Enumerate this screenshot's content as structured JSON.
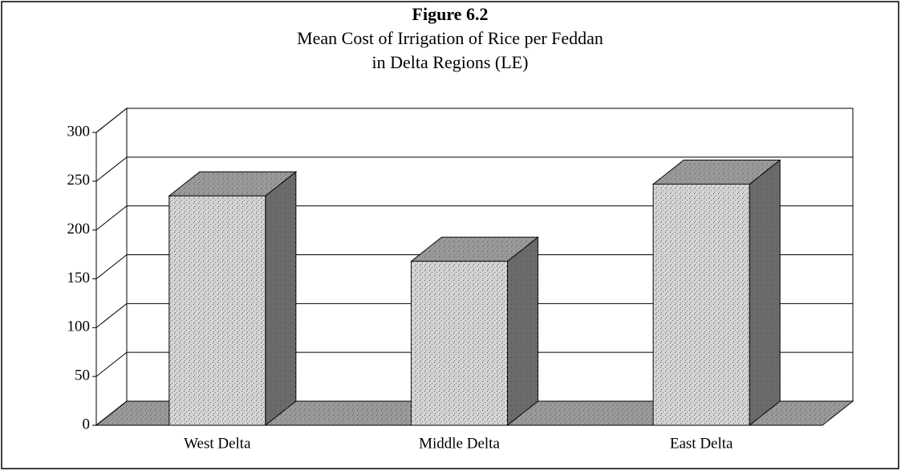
{
  "chart_data": {
    "type": "bar3d",
    "title": "Figure 6.2",
    "subtitle": [
      "Mean Cost of Irrigation of Rice per Feddan",
      "in Delta Regions (LE)"
    ],
    "categories": [
      "West Delta",
      "Middle Delta",
      "East Delta"
    ],
    "values": [
      235,
      168,
      247
    ],
    "color": "#d4d4d4",
    "ylim": [
      0,
      300
    ],
    "yticks": [
      0,
      50,
      100,
      150,
      200,
      250,
      300
    ],
    "grid": true
  }
}
